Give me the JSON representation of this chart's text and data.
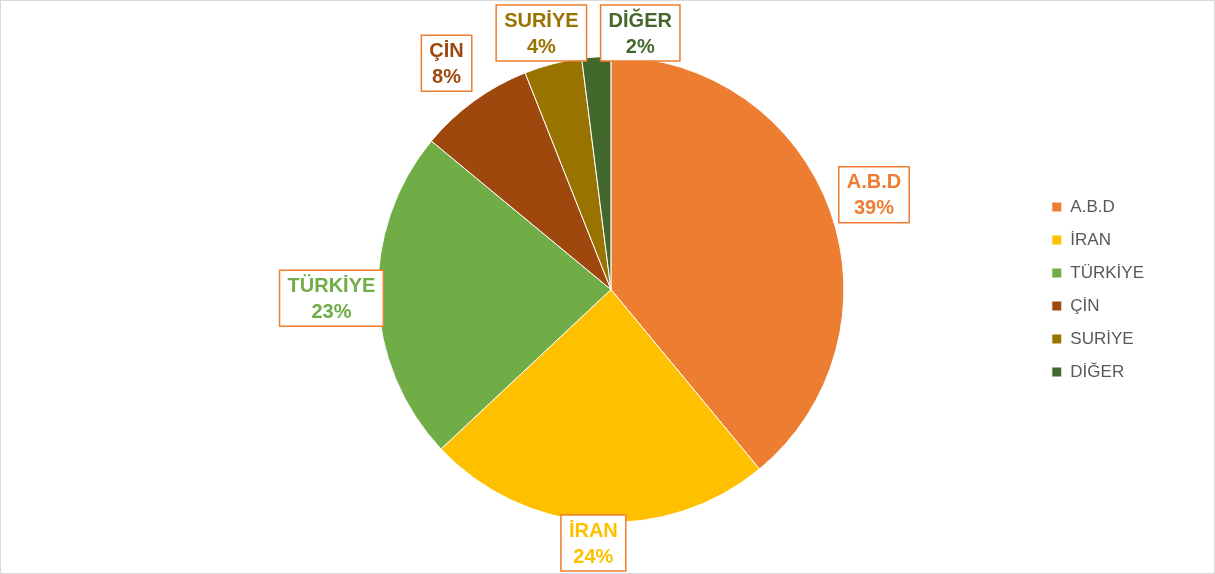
{
  "chart_data": {
    "type": "pie",
    "categories": [
      "A.B.D",
      "İRAN",
      "TÜRKİYE",
      "ÇİN",
      "SURİYE",
      "DİĞER"
    ],
    "values": [
      39,
      24,
      23,
      8,
      4,
      2
    ],
    "colors": [
      "#ed7d31",
      "#ffc000",
      "#70ad47",
      "#9e480e",
      "#997300",
      "#43682b"
    ],
    "value_labels": [
      "39%",
      "24%",
      "23%",
      "8%",
      "4%",
      "2%"
    ],
    "legend": "right"
  }
}
